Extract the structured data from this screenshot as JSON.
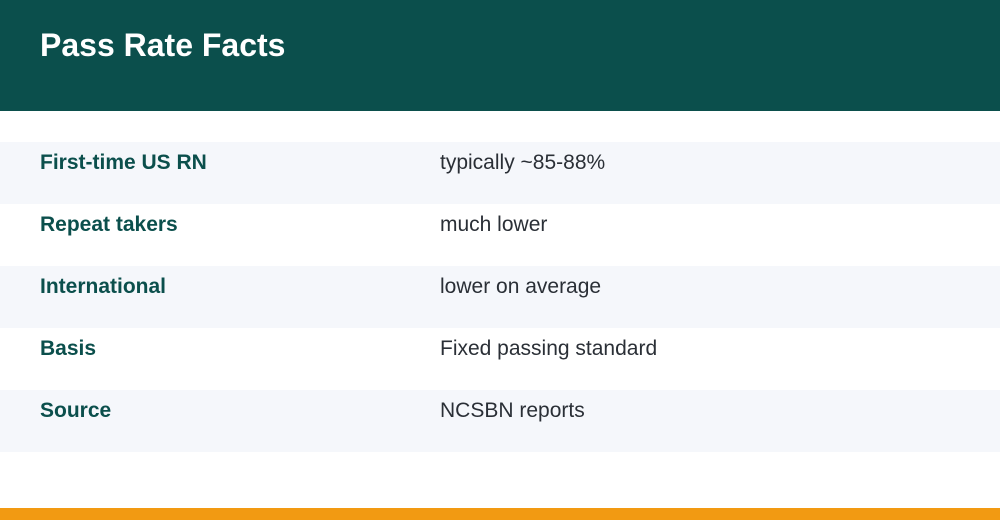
{
  "header": {
    "title": "Pass Rate Facts"
  },
  "facts": [
    {
      "label": "First-time US RN",
      "value": "typically ~85-88%"
    },
    {
      "label": "Repeat takers",
      "value": "much lower"
    },
    {
      "label": "International",
      "value": "lower on average"
    },
    {
      "label": "Basis",
      "value": "Fixed passing standard"
    },
    {
      "label": "Source",
      "value": "NCSBN reports"
    }
  ],
  "colors": {
    "header_bg": "#0b4f4c",
    "label_text": "#0b4f4c",
    "row_shade": "#f5f7fb",
    "accent_bar": "#f29a12"
  }
}
